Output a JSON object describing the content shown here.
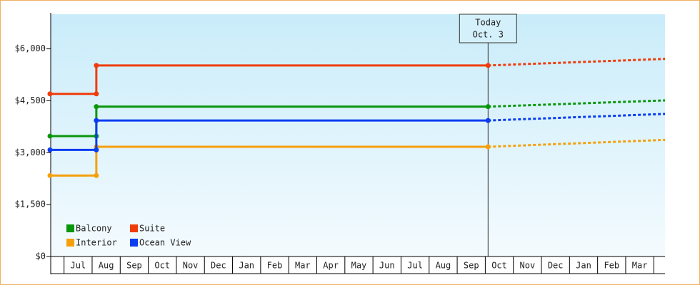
{
  "chart_data": {
    "type": "line",
    "xlim": [
      0.5,
      22.4
    ],
    "ylim": [
      0,
      7000
    ],
    "yticks": [
      {
        "value": 0,
        "label": "$0"
      },
      {
        "value": 1500,
        "label": "$1,500"
      },
      {
        "value": 3000,
        "label": "$3,000"
      },
      {
        "value": 4500,
        "label": "$4,500"
      },
      {
        "value": 6000,
        "label": "$6,000"
      }
    ],
    "xticks": [
      {
        "value": 1,
        "label": "Jul"
      },
      {
        "value": 2,
        "label": "Aug"
      },
      {
        "value": 3,
        "label": "Sep"
      },
      {
        "value": 4,
        "label": "Oct"
      },
      {
        "value": 5,
        "label": "Nov"
      },
      {
        "value": 6,
        "label": "Dec"
      },
      {
        "value": 7,
        "label": "Jan"
      },
      {
        "value": 8,
        "label": "Feb"
      },
      {
        "value": 9,
        "label": "Mar"
      },
      {
        "value": 10,
        "label": "Apr"
      },
      {
        "value": 11,
        "label": "May"
      },
      {
        "value": 12,
        "label": "Jun"
      },
      {
        "value": 13,
        "label": "Jul"
      },
      {
        "value": 14,
        "label": "Aug"
      },
      {
        "value": 15,
        "label": "Sep"
      },
      {
        "value": 16,
        "label": "Oct"
      },
      {
        "value": 17,
        "label": "Nov"
      },
      {
        "value": 18,
        "label": "Dec"
      },
      {
        "value": 19,
        "label": "Jan"
      },
      {
        "value": 20,
        "label": "Feb"
      },
      {
        "value": 21,
        "label": "Mar"
      }
    ],
    "annotation": {
      "x": 16.1,
      "lines": [
        "Today",
        "Oct. 3"
      ]
    },
    "series": [
      {
        "name": "Balcony",
        "color": "#0a960a",
        "x": [
          0.5,
          2.15,
          2.15,
          16.1
        ],
        "values": [
          3480,
          3480,
          4330,
          4330
        ],
        "projection": {
          "x": [
            16.1,
            22.4
          ],
          "values": [
            4330,
            4510
          ]
        }
      },
      {
        "name": "Suite",
        "color": "#f03c0a",
        "x": [
          0.5,
          2.15,
          2.15,
          16.1
        ],
        "values": [
          4700,
          4700,
          5520,
          5520
        ],
        "projection": {
          "x": [
            16.1,
            22.4
          ],
          "values": [
            5520,
            5710
          ]
        }
      },
      {
        "name": "Interior",
        "color": "#f5a00a",
        "x": [
          0.5,
          2.15,
          2.15,
          16.1
        ],
        "values": [
          2340,
          2340,
          3170,
          3170
        ],
        "projection": {
          "x": [
            16.1,
            22.4
          ],
          "values": [
            3170,
            3370
          ]
        }
      },
      {
        "name": "Ocean View",
        "color": "#0a3cf0",
        "x": [
          0.5,
          2.15,
          2.15,
          16.1
        ],
        "values": [
          3080,
          3080,
          3930,
          3930
        ],
        "projection": {
          "x": [
            16.1,
            22.4
          ],
          "values": [
            3930,
            4120
          ]
        }
      }
    ]
  }
}
